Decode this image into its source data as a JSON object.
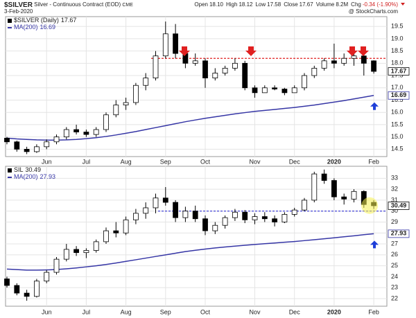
{
  "header": {
    "symbol": "$SILVER",
    "description": "Silver - Continuous Contract (EOD)",
    "exchange": "CME",
    "date": "3-Feb-2020",
    "stats": [
      {
        "label": "Open",
        "value": "18.10"
      },
      {
        "label": "High",
        "value": "18.12"
      },
      {
        "label": "Low",
        "value": "17.58"
      },
      {
        "label": "Close",
        "value": "17.67"
      },
      {
        "label": "Volume",
        "value": "8.2M"
      },
      {
        "label": "Chg",
        "value": "-0.34 (-1.90%)"
      }
    ],
    "credit": "@ StockCharts.com"
  },
  "chart_data": [
    {
      "type": "candlestick",
      "name": "$SILVER (Daily)",
      "categories": [
        null,
        null,
        null,
        null,
        "Jun",
        null,
        null,
        null,
        "Jul",
        null,
        null,
        null,
        "Aug",
        null,
        null,
        null,
        "Sep",
        null,
        null,
        null,
        "Oct",
        null,
        null,
        null,
        null,
        "Nov",
        null,
        null,
        null,
        "Dec",
        null,
        null,
        null,
        "2020",
        null,
        null,
        null,
        "Feb"
      ],
      "open": [
        14.95,
        14.8,
        14.5,
        14.4,
        14.6,
        14.8,
        15.0,
        15.3,
        15.2,
        15.1,
        15.3,
        15.9,
        16.3,
        16.4,
        17.1,
        17.4,
        18.3,
        19.2,
        18.4,
        18.0,
        18.1,
        17.4,
        17.6,
        17.8,
        18.0,
        17.0,
        16.8,
        17.0,
        16.95,
        16.8,
        17.0,
        17.5,
        17.8,
        18.1,
        18.0,
        18.2,
        18.3,
        18.1
      ],
      "high": [
        15.0,
        14.85,
        14.6,
        14.7,
        14.9,
        15.1,
        15.4,
        15.5,
        15.3,
        15.4,
        16.0,
        16.5,
        16.6,
        17.2,
        17.6,
        18.5,
        19.7,
        19.6,
        18.6,
        18.4,
        18.2,
        17.8,
        17.9,
        18.2,
        18.1,
        17.1,
        17.1,
        17.1,
        17.0,
        17.1,
        17.6,
        17.9,
        18.2,
        18.8,
        18.4,
        18.5,
        18.4,
        18.12
      ],
      "low": [
        14.7,
        14.4,
        14.3,
        14.35,
        14.5,
        14.7,
        14.9,
        15.1,
        15.0,
        15.0,
        15.2,
        15.8,
        16.1,
        16.3,
        16.9,
        17.3,
        18.2,
        18.2,
        17.8,
        17.9,
        17.0,
        17.3,
        17.5,
        17.7,
        16.9,
        16.6,
        16.8,
        16.9,
        16.7,
        16.8,
        16.9,
        17.4,
        17.7,
        17.8,
        17.9,
        17.9,
        17.5,
        17.58
      ],
      "close": [
        14.8,
        14.5,
        14.4,
        14.6,
        14.8,
        15.0,
        15.3,
        15.2,
        15.1,
        15.3,
        15.9,
        16.3,
        16.4,
        17.1,
        17.4,
        18.3,
        19.2,
        18.4,
        18.0,
        18.1,
        17.4,
        17.6,
        17.8,
        18.0,
        17.0,
        16.8,
        17.0,
        16.95,
        16.8,
        17.0,
        17.5,
        17.8,
        18.1,
        18.0,
        18.2,
        18.3,
        18.0,
        17.67
      ],
      "ma": {
        "name": "MA(200)",
        "color": "#3535a5",
        "values": [
          14.95,
          14.92,
          14.9,
          14.88,
          14.87,
          14.87,
          14.88,
          14.9,
          14.93,
          14.97,
          15.02,
          15.08,
          15.15,
          15.22,
          15.3,
          15.38,
          15.46,
          15.54,
          15.62,
          15.69,
          15.76,
          15.82,
          15.88,
          15.94,
          15.99,
          16.04,
          16.08,
          16.12,
          16.16,
          16.2,
          16.25,
          16.3,
          16.36,
          16.42,
          16.48,
          16.55,
          16.62,
          16.69
        ]
      },
      "hline": {
        "value": 18.2,
        "color": "#e02020"
      },
      "ylim": [
        14.2,
        19.9
      ],
      "yticks": [
        14.5,
        {
          "value": 15,
          "label": "15.0"
        },
        15.5,
        {
          "value": 16,
          "label": "16.0"
        },
        16.5,
        {
          "value": 17,
          "label": "17.0"
        },
        17.5,
        {
          "value": 18,
          "label": "18.0"
        },
        18.5,
        {
          "value": 19,
          "label": "19.0"
        },
        19.5
      ],
      "grid": true
    },
    {
      "type": "candlestick",
      "name": "SIL",
      "categories": [
        null,
        null,
        null,
        null,
        "Jun",
        null,
        null,
        null,
        "Jul",
        null,
        null,
        null,
        "Aug",
        null,
        null,
        null,
        "Sep",
        null,
        null,
        null,
        "Oct",
        null,
        null,
        null,
        null,
        "Nov",
        null,
        null,
        null,
        "Dec",
        null,
        null,
        null,
        "2020",
        null,
        null,
        null,
        "Feb"
      ],
      "open": [
        23.8,
        23.2,
        22.5,
        22.2,
        23.6,
        24.4,
        25.6,
        26.5,
        26.2,
        26.4,
        27.2,
        28.2,
        28.0,
        29.2,
        29.8,
        30.3,
        31.2,
        30.8,
        29.4,
        30.0,
        29.3,
        28.2,
        28.7,
        29.4,
        29.9,
        29.2,
        29.5,
        29.3,
        29.0,
        29.7,
        30.1,
        31.0,
        33.4,
        32.8,
        31.3,
        31.1,
        31.8,
        30.8
      ],
      "high": [
        24.0,
        23.4,
        22.8,
        23.8,
        24.6,
        25.8,
        27.0,
        26.8,
        26.6,
        27.4,
        28.5,
        29.0,
        29.5,
        30.2,
        30.8,
        31.6,
        32.2,
        31.0,
        30.4,
        30.5,
        29.6,
        29.0,
        29.6,
        30.2,
        30.1,
        29.8,
        29.9,
        29.6,
        29.9,
        30.3,
        31.2,
        33.6,
        33.8,
        33.0,
        31.6,
        32.0,
        31.9,
        31.0
      ],
      "low": [
        23.0,
        22.3,
        21.8,
        22.1,
        23.4,
        24.2,
        25.4,
        25.9,
        25.7,
        26.2,
        27.0,
        27.6,
        27.8,
        28.8,
        29.3,
        29.8,
        30.5,
        29.0,
        29.0,
        29.0,
        27.8,
        27.9,
        28.4,
        29.1,
        28.9,
        28.8,
        29.0,
        28.6,
        28.9,
        29.5,
        30.0,
        30.8,
        32.5,
        31.0,
        30.6,
        30.8,
        30.3,
        30.2
      ],
      "close": [
        23.2,
        22.5,
        22.2,
        23.6,
        24.4,
        25.6,
        26.5,
        26.2,
        26.4,
        27.2,
        28.2,
        28.0,
        29.2,
        29.8,
        30.3,
        31.2,
        30.8,
        29.4,
        30.0,
        29.3,
        28.2,
        28.7,
        29.4,
        29.9,
        29.2,
        29.5,
        29.3,
        29.0,
        29.7,
        30.1,
        31.0,
        33.4,
        32.8,
        31.3,
        31.1,
        31.8,
        30.6,
        30.49
      ],
      "ma": {
        "name": "MA(200)",
        "color": "#3535a5",
        "values": [
          24.7,
          24.65,
          24.6,
          24.6,
          24.62,
          24.66,
          24.72,
          24.8,
          24.9,
          25.0,
          25.12,
          25.25,
          25.4,
          25.55,
          25.7,
          25.85,
          26.0,
          26.15,
          26.3,
          26.42,
          26.53,
          26.63,
          26.72,
          26.8,
          26.88,
          26.95,
          27.02,
          27.08,
          27.15,
          27.22,
          27.3,
          27.38,
          27.47,
          27.56,
          27.65,
          27.74,
          27.84,
          27.93
        ]
      },
      "hline": {
        "value": 30,
        "color": "#3535d5"
      },
      "ylim": [
        21.3,
        34.1
      ],
      "yticks": [
        22,
        23,
        24,
        25,
        26,
        27,
        28,
        29,
        30,
        31,
        32,
        33
      ],
      "grid": true
    }
  ]
}
